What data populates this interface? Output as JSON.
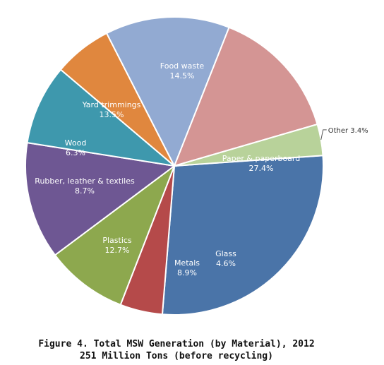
{
  "chart_data": {
    "type": "pie",
    "start_angle_deg": 0,
    "slices": [
      {
        "label": "Paper & paperboard",
        "value": 27.4,
        "display": "27.4%",
        "color": "#4a74a8"
      },
      {
        "label": "Glass",
        "value": 4.6,
        "display": "4.6%",
        "color": "#b54a4a"
      },
      {
        "label": "Metals",
        "value": 8.9,
        "display": "8.9%",
        "color": "#8da84e"
      },
      {
        "label": "Plastics",
        "value": 12.7,
        "display": "12.7%",
        "color": "#6e5793"
      },
      {
        "label": "Rubber, leather & textiles",
        "value": 8.7,
        "display": "8.7%",
        "color": "#3e98ad"
      },
      {
        "label": "Wood",
        "value": 6.3,
        "display": "6.3%",
        "color": "#e0873e"
      },
      {
        "label": "Yard trimmings",
        "value": 13.5,
        "display": "13.5%",
        "color": "#92aad2"
      },
      {
        "label": "Food waste",
        "value": 14.5,
        "display": "14.5%",
        "color": "#d49594"
      },
      {
        "label": "Other",
        "value": 3.4,
        "display": "3.4%",
        "color": "#b8d29a"
      }
    ],
    "legend": "none"
  },
  "caption": {
    "line1": "Figure 4. Total MSW Generation (by Material), 2012",
    "line2": "251 Million Tons (before recycling)"
  }
}
